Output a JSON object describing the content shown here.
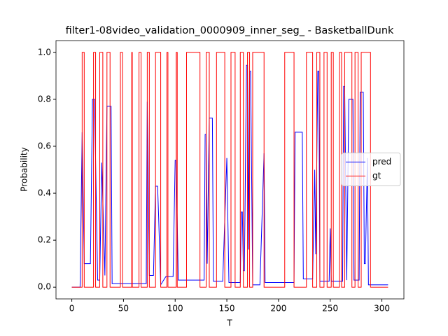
{
  "chart_data": {
    "type": "line",
    "title": "filter1-08video_validation_0000909_inner_seg_ - BasketballDunk",
    "x_label": "T",
    "y_label": "Probability",
    "xlim": [
      -15.3,
      321.3
    ],
    "ylim": [
      -0.05,
      1.05
    ],
    "xticks": [
      0,
      50,
      100,
      150,
      200,
      250,
      300
    ],
    "yticks": [
      {
        "value": 0,
        "label": "0.0"
      },
      0.2,
      0.4,
      0.6,
      0.8,
      {
        "value": 1,
        "label": "1.0"
      }
    ],
    "legend": "center right",
    "series": [
      {
        "name": "pred",
        "color": "#0000ff",
        "x": [
          0,
          8,
          10,
          12,
          18,
          20,
          22,
          25,
          27,
          29,
          32,
          34,
          38,
          39,
          72,
          73,
          75,
          79,
          81,
          83,
          84,
          86,
          91,
          98,
          100,
          101,
          103,
          128,
          129,
          130,
          131,
          133,
          136,
          137,
          146,
          150,
          152,
          163,
          164,
          165,
          166,
          167,
          169,
          170,
          171,
          172,
          173,
          175,
          182,
          186,
          187,
          215,
          216,
          223,
          224,
          233,
          235,
          236,
          238,
          239,
          240,
          249,
          250,
          251,
          262,
          263,
          264,
          266,
          268,
          272,
          273,
          278,
          279,
          282,
          283,
          284,
          286,
          287,
          306
        ],
        "values": [
          0,
          0,
          0.66,
          0.1,
          0.1,
          0.8,
          0.8,
          0.03,
          0.03,
          0.53,
          0.05,
          0.77,
          0.77,
          0.015,
          0.015,
          0.79,
          0.05,
          0.05,
          0.43,
          0.43,
          0.3,
          0.01,
          0.045,
          0.045,
          0.54,
          0.54,
          0.03,
          0.03,
          0.65,
          0.65,
          0.1,
          0.72,
          0.72,
          0.025,
          0.025,
          0.55,
          0.02,
          0.02,
          0.32,
          0.32,
          0.07,
          0.07,
          0.945,
          0.945,
          0.16,
          0.92,
          0.92,
          0.01,
          0.01,
          0.57,
          0.02,
          0.02,
          0.66,
          0.66,
          0.035,
          0.035,
          0.5,
          0.14,
          0.92,
          0.92,
          0.025,
          0.025,
          0.25,
          0.025,
          0.025,
          0.855,
          0.855,
          0.03,
          0.8,
          0.8,
          0.03,
          0.03,
          0.83,
          0.83,
          0.1,
          0.1,
          0.55,
          0.01,
          0.01
        ]
      },
      {
        "name": "gt",
        "color": "#ff0000",
        "x": [
          0,
          10,
          10,
          12,
          12,
          21,
          21,
          23,
          23,
          27,
          27,
          30,
          30,
          34,
          34,
          37,
          37,
          47,
          47,
          49,
          49,
          58,
          58,
          58.5,
          58.5,
          65,
          65,
          67,
          67,
          73,
          73,
          75,
          75,
          81,
          81,
          86,
          86,
          92,
          92,
          93,
          93,
          101,
          101,
          102,
          102,
          111,
          111,
          124,
          124,
          130,
          130,
          133,
          133,
          140,
          140,
          148,
          148,
          154,
          154,
          158,
          158,
          163,
          163,
          166,
          166,
          170,
          170,
          172,
          172,
          175,
          175,
          186,
          186,
          206,
          206,
          215,
          215,
          227,
          227,
          233,
          233,
          237,
          237,
          240,
          240,
          244,
          244,
          247,
          247,
          251,
          251,
          253,
          253,
          259,
          259,
          261,
          261,
          264,
          264,
          271,
          271,
          274,
          274,
          277,
          277,
          280,
          280,
          289,
          289,
          306
        ],
        "values": [
          0,
          0,
          1,
          1,
          0,
          0,
          1,
          1,
          0,
          0,
          1,
          1,
          0,
          0,
          1,
          1,
          0,
          0,
          1,
          1,
          0,
          0,
          1,
          1,
          0,
          0,
          1,
          1,
          0,
          0,
          1,
          1,
          0,
          0,
          1,
          1,
          0,
          0,
          1,
          1,
          0,
          0,
          1,
          1,
          0,
          0,
          1,
          1,
          0,
          0,
          1,
          1,
          0,
          0,
          1,
          1,
          0,
          0,
          1,
          1,
          0,
          0,
          1,
          1,
          0,
          0,
          1,
          1,
          0,
          0,
          1,
          1,
          0,
          0,
          1,
          1,
          0,
          0,
          1,
          1,
          0,
          0,
          1,
          1,
          0,
          0,
          1,
          1,
          0,
          0,
          1,
          1,
          0,
          0,
          1,
          1,
          0,
          0,
          1,
          1,
          0,
          0,
          1,
          1,
          0,
          0,
          1,
          1,
          0,
          0
        ]
      }
    ]
  }
}
